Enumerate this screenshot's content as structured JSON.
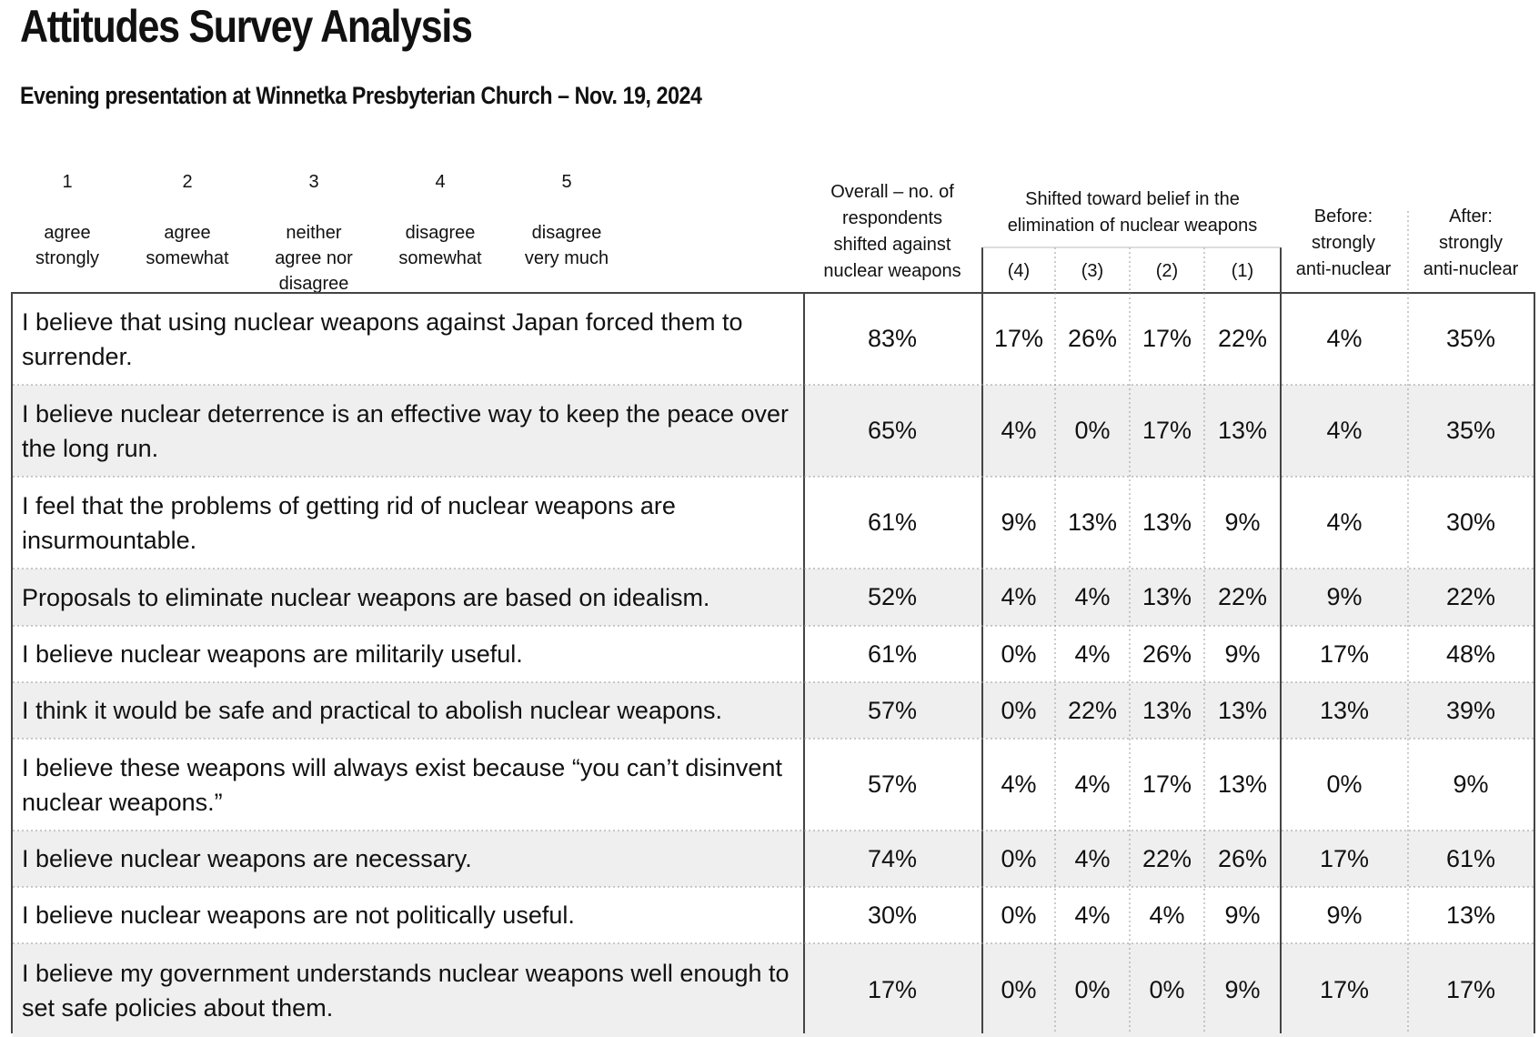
{
  "title": "Attitudes Survey Analysis",
  "subtitle": "Evening presentation at Winnetka Presbyterian Church – Nov. 19, 2024",
  "scale": [
    {
      "num": "1",
      "label": "agree\nstrongly"
    },
    {
      "num": "2",
      "label": "agree\nsomewhat"
    },
    {
      "num": "3",
      "label": "neither\nagree nor\ndisagree"
    },
    {
      "num": "4",
      "label": "disagree\nsomewhat"
    },
    {
      "num": "5",
      "label": "disagree\nvery much"
    }
  ],
  "headers": {
    "overall": "Overall – no. of\nrespondents\nshifted against\nnuclear weapons",
    "shifted": "Shifted toward belief in the\nelimination of nuclear weapons",
    "sub": [
      "(4)",
      "(3)",
      "(2)",
      "(1)"
    ],
    "before": "Before:\nstrongly\nanti-nuclear",
    "after": "After:\nstrongly\nanti-nuclear"
  },
  "rows": [
    {
      "statement": "I believe that using nuclear weapons against Japan forced them to surrender.",
      "overall": "83%",
      "s4": "17%",
      "s3": "26%",
      "s2": "17%",
      "s1": "22%",
      "before": "4%",
      "after": "35%"
    },
    {
      "statement": "I believe nuclear deterrence is an effective way to keep the peace over the long run.",
      "overall": "65%",
      "s4": "4%",
      "s3": "0%",
      "s2": "17%",
      "s1": "13%",
      "before": "4%",
      "after": "35%"
    },
    {
      "statement": "I feel that the problems of getting rid of nuclear weapons are insurmountable.",
      "overall": "61%",
      "s4": "9%",
      "s3": "13%",
      "s2": "13%",
      "s1": "9%",
      "before": "4%",
      "after": "30%"
    },
    {
      "statement": "Proposals to eliminate nuclear weapons are based on idealism.",
      "overall": "52%",
      "s4": "4%",
      "s3": "4%",
      "s2": "13%",
      "s1": "22%",
      "before": "9%",
      "after": "22%"
    },
    {
      "statement": "I believe nuclear weapons are militarily useful.",
      "overall": "61%",
      "s4": "0%",
      "s3": "4%",
      "s2": "26%",
      "s1": "9%",
      "before": "17%",
      "after": "48%"
    },
    {
      "statement": "I think it would be safe and practical to abolish nuclear weapons.",
      "overall": "57%",
      "s4": "0%",
      "s3": "22%",
      "s2": "13%",
      "s1": "13%",
      "before": "13%",
      "after": "39%"
    },
    {
      "statement": "I believe these weapons will always exist because “you can’t disinvent nuclear weapons.”",
      "overall": "57%",
      "s4": "4%",
      "s3": "4%",
      "s2": "17%",
      "s1": "13%",
      "before": "0%",
      "after": "9%"
    },
    {
      "statement": "I believe nuclear weapons are necessary.",
      "overall": "74%",
      "s4": "0%",
      "s3": "4%",
      "s2": "22%",
      "s1": "26%",
      "before": "17%",
      "after": "61%"
    },
    {
      "statement": "I believe nuclear weapons are not politically useful.",
      "overall": "30%",
      "s4": "0%",
      "s3": "4%",
      "s2": "4%",
      "s1": "9%",
      "before": "9%",
      "after": "13%"
    },
    {
      "statement": "I believe my government understands nuclear weapons well enough to set safe policies about them.",
      "overall": "17%",
      "s4": "0%",
      "s3": "0%",
      "s2": "0%",
      "s1": "9%",
      "before": "17%",
      "after": "17%"
    }
  ]
}
